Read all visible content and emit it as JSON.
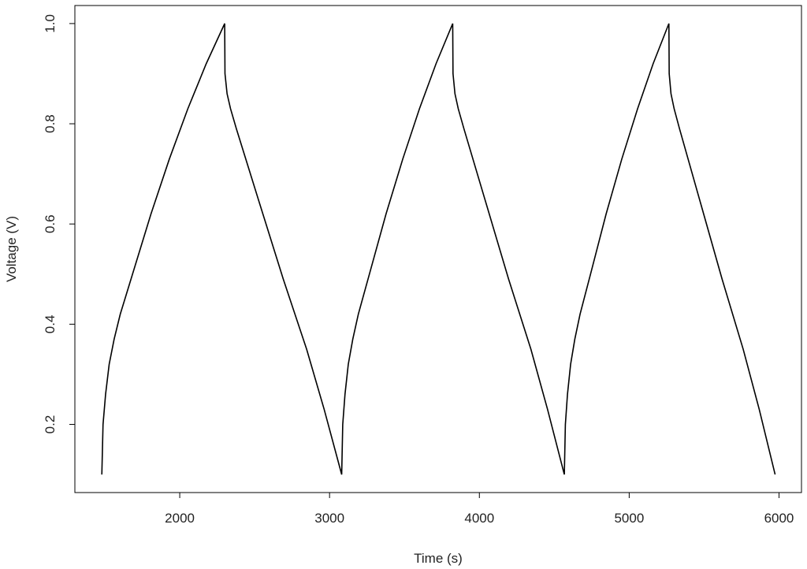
{
  "chart_data": {
    "type": "line",
    "x_label": "Time (s)",
    "y_label": "Voltage (V)",
    "x": [
      1480,
      1488,
      1505,
      1529,
      1562,
      1603,
      1685,
      1808,
      1931,
      2054,
      2177,
      2300,
      2302,
      2316,
      2339,
      2378,
      2534,
      2691,
      2847,
      2964,
      3081,
      3088,
      3103,
      3125,
      3155,
      3192,
      3266,
      3377,
      3489,
      3600,
      3711,
      3822,
      3824,
      3837,
      3859,
      3897,
      4046,
      4195,
      4344,
      4455,
      4567,
      4574,
      4588,
      4609,
      4637,
      4672,
      4742,
      4846,
      4951,
      5056,
      5160,
      5265,
      5267,
      5279,
      5300,
      5336,
      5478,
      5620,
      5761,
      5868,
      5974
    ],
    "series": [
      {
        "color": "#000000",
        "values": [
          0.1,
          0.2,
          0.26,
          0.32,
          0.37,
          0.42,
          0.5,
          0.62,
          0.73,
          0.83,
          0.92,
          1.0,
          0.9,
          0.86,
          0.83,
          0.79,
          0.64,
          0.49,
          0.35,
          0.23,
          0.1,
          0.2,
          0.26,
          0.32,
          0.37,
          0.42,
          0.5,
          0.62,
          0.73,
          0.83,
          0.92,
          1.0,
          0.9,
          0.86,
          0.83,
          0.79,
          0.64,
          0.49,
          0.35,
          0.23,
          0.1,
          0.2,
          0.26,
          0.32,
          0.37,
          0.42,
          0.5,
          0.62,
          0.73,
          0.83,
          0.92,
          1.0,
          0.9,
          0.86,
          0.83,
          0.79,
          0.64,
          0.49,
          0.35,
          0.23,
          0.1
        ]
      }
    ],
    "xlim": [
      1300,
      6150
    ],
    "ylim": [
      0.064,
      1.036
    ],
    "xticks": [
      2000,
      3000,
      4000,
      5000,
      6000
    ],
    "yticks": [
      0.2,
      0.4,
      0.6,
      0.8,
      {
        "value": 1,
        "label": "1.0"
      }
    ]
  }
}
